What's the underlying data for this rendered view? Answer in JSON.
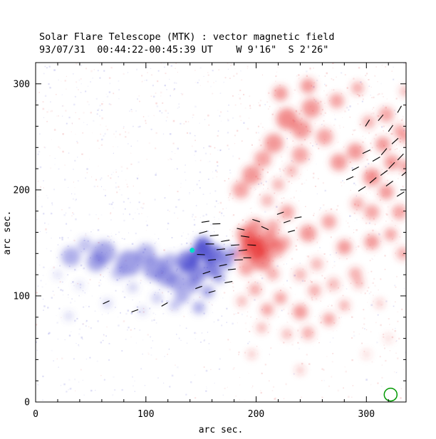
{
  "header": {
    "line1": "Solar Flare Telescope (MTK) : vector magnetic field",
    "line2": "93/07/31  00:44:22-00:45:39 UT    W 9'16\"  S 2'26\""
  },
  "axes": {
    "xlabel": "arc sec.",
    "ylabel": "arc sec.",
    "xticks": [
      0,
      100,
      200,
      300
    ],
    "yticks": [
      0,
      100,
      200,
      300
    ]
  },
  "colors": {
    "positive": "#e83030",
    "negative": "#5050d0",
    "speckle_red": "#f0a0a0",
    "speckle_blue": "#a0a0e6",
    "vector": "#000000",
    "axis": "#000000",
    "marker_cyan": "#00ddc8",
    "marker_green": "#009900"
  },
  "chart_data": {
    "type": "heatmap",
    "title": "Solar Flare Telescope (MTK) : vector magnetic field",
    "subtitle": "93/07/31  00:44:22-00:45:39 UT    W 9'16\"  S 2'26\"",
    "xlabel": "arc sec.",
    "ylabel": "arc sec.",
    "xlim": [
      0,
      336
    ],
    "ylim": [
      0,
      320
    ],
    "xticks": [
      0,
      100,
      200,
      300
    ],
    "yticks": [
      0,
      100,
      200,
      300
    ],
    "minor_tick_step": 20,
    "blue_blobs": [
      [
        32,
        137,
        9,
        0.45
      ],
      [
        45,
        148,
        7,
        0.35
      ],
      [
        55,
        132,
        9,
        0.5
      ],
      [
        62,
        141,
        11,
        0.5
      ],
      [
        75,
        122,
        7,
        0.35
      ],
      [
        85,
        131,
        12,
        0.55
      ],
      [
        100,
        140,
        9,
        0.45
      ],
      [
        108,
        126,
        11,
        0.55
      ],
      [
        118,
        118,
        9,
        0.5
      ],
      [
        128,
        114,
        9,
        0.5
      ],
      [
        122,
        132,
        8,
        0.45
      ],
      [
        138,
        133,
        10,
        0.7
      ],
      [
        146,
        121,
        9,
        0.65
      ],
      [
        150,
        143,
        8,
        0.85
      ],
      [
        143,
        133,
        6,
        0.85
      ],
      [
        157,
        134,
        6,
        0.8
      ],
      [
        152,
        148,
        8,
        0.8
      ],
      [
        163,
        140,
        8,
        0.75
      ],
      [
        172,
        132,
        7,
        0.6
      ],
      [
        178,
        141,
        6,
        0.5
      ],
      [
        160,
        125,
        7,
        0.7
      ],
      [
        135,
        127,
        5,
        0.7
      ],
      [
        133,
        100,
        7,
        0.45
      ],
      [
        148,
        89,
        6,
        0.45
      ],
      [
        156,
        104,
        6,
        0.5
      ],
      [
        126,
        91,
        5,
        0.35
      ],
      [
        142,
        110,
        7,
        0.5
      ],
      [
        166,
        118,
        6,
        0.5
      ],
      [
        65,
        93,
        4,
        0.3
      ],
      [
        30,
        81,
        4,
        0.25
      ],
      [
        97,
        86,
        4,
        0.25
      ],
      [
        20,
        120,
        4,
        0.2
      ],
      [
        40,
        110,
        4,
        0.2
      ],
      [
        88,
        108,
        5,
        0.25
      ],
      [
        110,
        98,
        5,
        0.3
      ]
    ],
    "red_blobs": [
      [
        197,
        146,
        12,
        0.7
      ],
      [
        205,
        134,
        10,
        0.6
      ],
      [
        211,
        152,
        9,
        0.55
      ],
      [
        190,
        158,
        8,
        0.55
      ],
      [
        199,
        165,
        8,
        0.5
      ],
      [
        218,
        144,
        8,
        0.45
      ],
      [
        191,
        126,
        7,
        0.45
      ],
      [
        198,
        148,
        5,
        0.85
      ],
      [
        205,
        141,
        4,
        0.8
      ],
      [
        184,
        138,
        5,
        0.4
      ],
      [
        215,
        165,
        7,
        0.4
      ],
      [
        225,
        150,
        7,
        0.4
      ],
      [
        186,
        200,
        8,
        0.45
      ],
      [
        196,
        214,
        9,
        0.5
      ],
      [
        206,
        229,
        8,
        0.45
      ],
      [
        216,
        244,
        9,
        0.5
      ],
      [
        228,
        267,
        10,
        0.55
      ],
      [
        241,
        257,
        9,
        0.5
      ],
      [
        250,
        277,
        9,
        0.5
      ],
      [
        262,
        250,
        8,
        0.45
      ],
      [
        240,
        233,
        8,
        0.45
      ],
      [
        222,
        291,
        7,
        0.5
      ],
      [
        247,
        298,
        7,
        0.5
      ],
      [
        273,
        284,
        7,
        0.45
      ],
      [
        292,
        296,
        6,
        0.4
      ],
      [
        318,
        271,
        7,
        0.45
      ],
      [
        330,
        256,
        6,
        0.4
      ],
      [
        335,
        293,
        5,
        0.35
      ],
      [
        302,
        264,
        6,
        0.4
      ],
      [
        275,
        226,
        8,
        0.5
      ],
      [
        290,
        236,
        8,
        0.5
      ],
      [
        305,
        212,
        8,
        0.55
      ],
      [
        315,
        243,
        7,
        0.5
      ],
      [
        323,
        226,
        7,
        0.5
      ],
      [
        318,
        198,
        7,
        0.5
      ],
      [
        330,
        179,
        7,
        0.45
      ],
      [
        305,
        179,
        7,
        0.45
      ],
      [
        292,
        187,
        6,
        0.4
      ],
      [
        336,
        222,
        6,
        0.45
      ],
      [
        335,
        250,
        6,
        0.4
      ],
      [
        228,
        179,
        7,
        0.45
      ],
      [
        247,
        159,
        8,
        0.5
      ],
      [
        266,
        170,
        7,
        0.45
      ],
      [
        280,
        146,
        7,
        0.5
      ],
      [
        305,
        151,
        7,
        0.5
      ],
      [
        322,
        158,
        6,
        0.45
      ],
      [
        333,
        140,
        6,
        0.4
      ],
      [
        290,
        121,
        6,
        0.4
      ],
      [
        270,
        111,
        6,
        0.35
      ],
      [
        255,
        130,
        6,
        0.35
      ],
      [
        240,
        120,
        6,
        0.35
      ],
      [
        210,
        190,
        6,
        0.35
      ],
      [
        220,
        205,
        6,
        0.35
      ],
      [
        232,
        218,
        6,
        0.35
      ],
      [
        199,
        106,
        6,
        0.4
      ],
      [
        210,
        87,
        6,
        0.45
      ],
      [
        222,
        98,
        6,
        0.45
      ],
      [
        240,
        85,
        7,
        0.5
      ],
      [
        253,
        105,
        6,
        0.4
      ],
      [
        266,
        78,
        6,
        0.45
      ],
      [
        247,
        65,
        6,
        0.4
      ],
      [
        228,
        64,
        5,
        0.35
      ],
      [
        280,
        91,
        5,
        0.4
      ],
      [
        293,
        112,
        5,
        0.35
      ],
      [
        312,
        93,
        4,
        0.3
      ],
      [
        196,
        45,
        4,
        0.3
      ],
      [
        240,
        30,
        4,
        0.3
      ],
      [
        215,
        121,
        6,
        0.4
      ],
      [
        187,
        95,
        5,
        0.35
      ],
      [
        205,
        70,
        5,
        0.35
      ],
      [
        320,
        60,
        4,
        0.2
      ],
      [
        300,
        45,
        4,
        0.2
      ]
    ],
    "vectors": [
      [
        152,
        160,
        195,
        12
      ],
      [
        162,
        157,
        186,
        12
      ],
      [
        172,
        152,
        190,
        12
      ],
      [
        181,
        148,
        184,
        12
      ],
      [
        188,
        143,
        186,
        12
      ],
      [
        158,
        149,
        180,
        12
      ],
      [
        168,
        144,
        185,
        12
      ],
      [
        176,
        139,
        190,
        12
      ],
      [
        184,
        134,
        182,
        12
      ],
      [
        150,
        139,
        178,
        11
      ],
      [
        160,
        134,
        186,
        11
      ],
      [
        170,
        129,
        192,
        11
      ],
      [
        178,
        125,
        186,
        11
      ],
      [
        155,
        122,
        198,
        11
      ],
      [
        165,
        118,
        194,
        11
      ],
      [
        175,
        113,
        190,
        11
      ],
      [
        148,
        108,
        200,
        10
      ],
      [
        160,
        104,
        196,
        10
      ],
      [
        190,
        156,
        172,
        12
      ],
      [
        196,
        148,
        176,
        12
      ],
      [
        192,
        136,
        180,
        11
      ],
      [
        186,
        163,
        168,
        11
      ],
      [
        200,
        171,
        162,
        11
      ],
      [
        208,
        164,
        155,
        11
      ],
      [
        154,
        170,
        188,
        11
      ],
      [
        164,
        168,
        182,
        11
      ],
      [
        228,
        170,
        18,
        10
      ],
      [
        238,
        174,
        10,
        10
      ],
      [
        232,
        161,
        15,
        10
      ],
      [
        222,
        178,
        20,
        10
      ],
      [
        296,
        201,
        32,
        12
      ],
      [
        306,
        209,
        40,
        12
      ],
      [
        316,
        216,
        36,
        12
      ],
      [
        323,
        223,
        46,
        12
      ],
      [
        309,
        229,
        30,
        12
      ],
      [
        300,
        236,
        26,
        12
      ],
      [
        316,
        236,
        50,
        12
      ],
      [
        326,
        246,
        42,
        12
      ],
      [
        331,
        231,
        46,
        12
      ],
      [
        321,
        206,
        36,
        12
      ],
      [
        331,
        196,
        32,
        12
      ],
      [
        335,
        216,
        40,
        12
      ],
      [
        290,
        220,
        28,
        11
      ],
      [
        285,
        211,
        24,
        11
      ],
      [
        301,
        263,
        58,
        11
      ],
      [
        313,
        268,
        50,
        11
      ],
      [
        322,
        258,
        55,
        11
      ],
      [
        330,
        276,
        60,
        11
      ],
      [
        64,
        94,
        205,
        10
      ],
      [
        90,
        86,
        200,
        10
      ],
      [
        117,
        92,
        210,
        10
      ]
    ],
    "markers": {
      "cyan_dot": {
        "x": 142,
        "y": 143,
        "r": 3.5
      },
      "green_circle": {
        "x": 322,
        "y": 7,
        "r": 9
      }
    },
    "speckle": {
      "count": 2200,
      "seed": 42
    }
  }
}
